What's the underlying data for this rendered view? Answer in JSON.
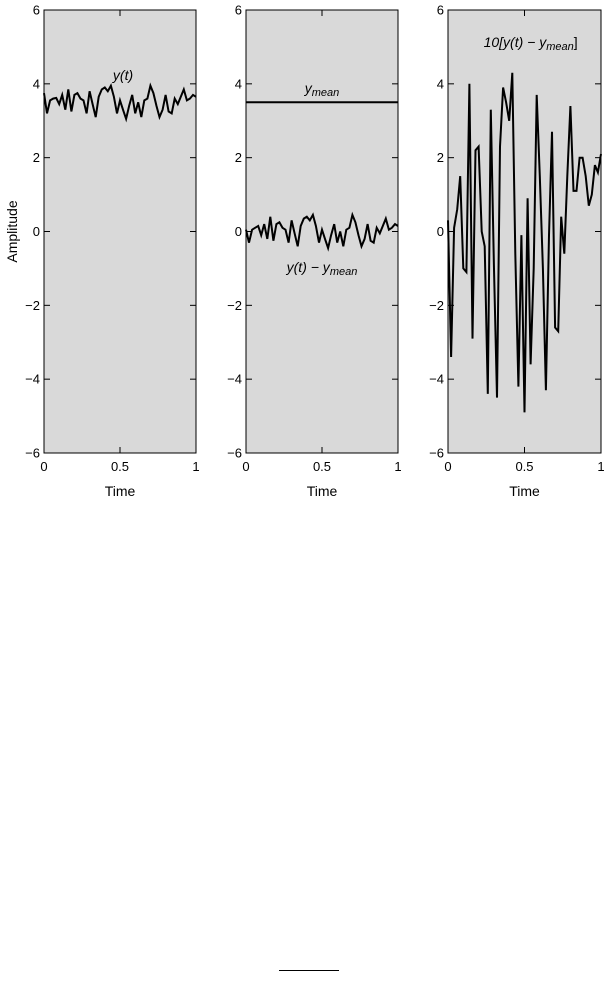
{
  "chart_data": [
    {
      "type": "line",
      "title": "",
      "xlabel": "Time",
      "ylabel": "Amplitude",
      "xlim": [
        0,
        1
      ],
      "ylim": [
        -6,
        6
      ],
      "xticks": [
        "0",
        "0.5",
        "1"
      ],
      "yticks": [
        "6",
        "4",
        "2",
        "0",
        "−2",
        "−4",
        "−6"
      ],
      "background": "#d9d9d9",
      "series": [
        {
          "annotation": {
            "main": "y(t)",
            "sub": ""
          },
          "x": [
            0,
            0.02,
            0.04,
            0.06,
            0.08,
            0.1,
            0.12,
            0.14,
            0.16,
            0.18,
            0.2,
            0.22,
            0.24,
            0.26,
            0.28,
            0.3,
            0.32,
            0.34,
            0.36,
            0.38,
            0.4,
            0.42,
            0.44,
            0.46,
            0.48,
            0.5,
            0.52,
            0.54,
            0.56,
            0.58,
            0.6,
            0.62,
            0.64,
            0.66,
            0.68,
            0.7,
            0.72,
            0.74,
            0.76,
            0.78,
            0.8,
            0.82,
            0.84,
            0.86,
            0.88,
            0.9,
            0.92,
            0.94,
            0.96,
            0.98,
            1
          ],
          "y": [
            3.75,
            3.2,
            3.55,
            3.6,
            3.62,
            3.45,
            3.7,
            3.3,
            3.85,
            3.25,
            3.7,
            3.75,
            3.6,
            3.55,
            3.2,
            3.8,
            3.45,
            3.1,
            3.65,
            3.85,
            3.9,
            3.8,
            3.95,
            3.65,
            3.2,
            3.55,
            3.3,
            3.05,
            3.4,
            3.7,
            3.2,
            3.5,
            3.1,
            3.55,
            3.6,
            3.95,
            3.75,
            3.4,
            3.1,
            3.3,
            3.7,
            3.25,
            3.2,
            3.6,
            3.45,
            3.65,
            3.85,
            3.55,
            3.6,
            3.7,
            3.65
          ]
        }
      ]
    },
    {
      "type": "line",
      "title": "",
      "xlabel": "Time",
      "ylabel": "",
      "xlim": [
        0,
        1
      ],
      "ylim": [
        -6,
        6
      ],
      "xticks": [
        "0",
        "0.5",
        "1"
      ],
      "yticks": [
        "6",
        "4",
        "2",
        "0",
        "−2",
        "−4",
        "−6"
      ],
      "background": "#d9d9d9",
      "series": [
        {
          "annotation": {
            "main": "y",
            "sub": "mean"
          },
          "x": [
            0,
            1
          ],
          "y": [
            3.5,
            3.5
          ]
        },
        {
          "annotation": {
            "main": "y(t) − y",
            "sub": "mean"
          },
          "x": [
            0,
            0.02,
            0.04,
            0.06,
            0.08,
            0.1,
            0.12,
            0.14,
            0.16,
            0.18,
            0.2,
            0.22,
            0.24,
            0.26,
            0.28,
            0.3,
            0.32,
            0.34,
            0.36,
            0.38,
            0.4,
            0.42,
            0.44,
            0.46,
            0.48,
            0.5,
            0.52,
            0.54,
            0.56,
            0.58,
            0.6,
            0.62,
            0.64,
            0.66,
            0.68,
            0.7,
            0.72,
            0.74,
            0.76,
            0.78,
            0.8,
            0.82,
            0.84,
            0.86,
            0.88,
            0.9,
            0.92,
            0.94,
            0.96,
            0.98,
            1
          ],
          "y": [
            0.05,
            -0.3,
            0.05,
            0.1,
            0.15,
            -0.1,
            0.2,
            -0.2,
            0.4,
            -0.25,
            0.2,
            0.25,
            0.1,
            0.05,
            -0.3,
            0.3,
            -0.05,
            -0.4,
            0.15,
            0.35,
            0.4,
            0.3,
            0.45,
            0.15,
            -0.3,
            0.05,
            -0.2,
            -0.45,
            -0.1,
            0.2,
            -0.3,
            0.0,
            -0.4,
            0.05,
            0.1,
            0.45,
            0.25,
            -0.1,
            -0.4,
            -0.2,
            0.2,
            -0.25,
            -0.3,
            0.1,
            -0.05,
            0.15,
            0.35,
            0.05,
            0.1,
            0.2,
            0.15
          ]
        }
      ]
    },
    {
      "type": "line",
      "title": "",
      "xlabel": "Time",
      "ylabel": "",
      "xlim": [
        0,
        1
      ],
      "ylim": [
        -6,
        6
      ],
      "xticks": [
        "0",
        "0.5",
        "1"
      ],
      "yticks": [
        "6",
        "4",
        "2",
        "0",
        "−2",
        "−4",
        "−6"
      ],
      "background": "#d9d9d9",
      "series": [
        {
          "annotation": {
            "main": "10[y(t) − y",
            "sub": "mean",
            "close": "]"
          },
          "x": [
            0,
            0.02,
            0.04,
            0.06,
            0.08,
            0.1,
            0.12,
            0.14,
            0.16,
            0.18,
            0.2,
            0.22,
            0.24,
            0.26,
            0.28,
            0.3,
            0.32,
            0.34,
            0.36,
            0.38,
            0.4,
            0.42,
            0.44,
            0.46,
            0.48,
            0.5,
            0.52,
            0.54,
            0.56,
            0.58,
            0.6,
            0.62,
            0.64,
            0.66,
            0.68,
            0.7,
            0.72,
            0.74,
            0.76,
            0.78,
            0.8,
            0.82,
            0.84,
            0.86,
            0.88,
            0.9,
            0.92,
            0.94,
            0.96,
            0.98,
            1
          ],
          "y": [
            0.3,
            -3.4,
            0.1,
            0.6,
            1.5,
            -1.0,
            -1.1,
            4.0,
            -2.9,
            2.2,
            2.3,
            0.0,
            -0.4,
            -4.4,
            3.3,
            -0.9,
            -4.5,
            2.3,
            3.9,
            3.5,
            3.0,
            4.3,
            -0.6,
            -4.2,
            -0.1,
            -4.9,
            0.9,
            -3.6,
            -1.0,
            3.7,
            1.5,
            -1.0,
            -4.3,
            -0.1,
            2.7,
            -2.6,
            -2.7,
            0.4,
            -0.6,
            1.5,
            3.4,
            1.1,
            1.1,
            2.0,
            2.0,
            1.5,
            0.7,
            1.0,
            1.8,
            1.6,
            2.1
          ]
        }
      ]
    }
  ]
}
